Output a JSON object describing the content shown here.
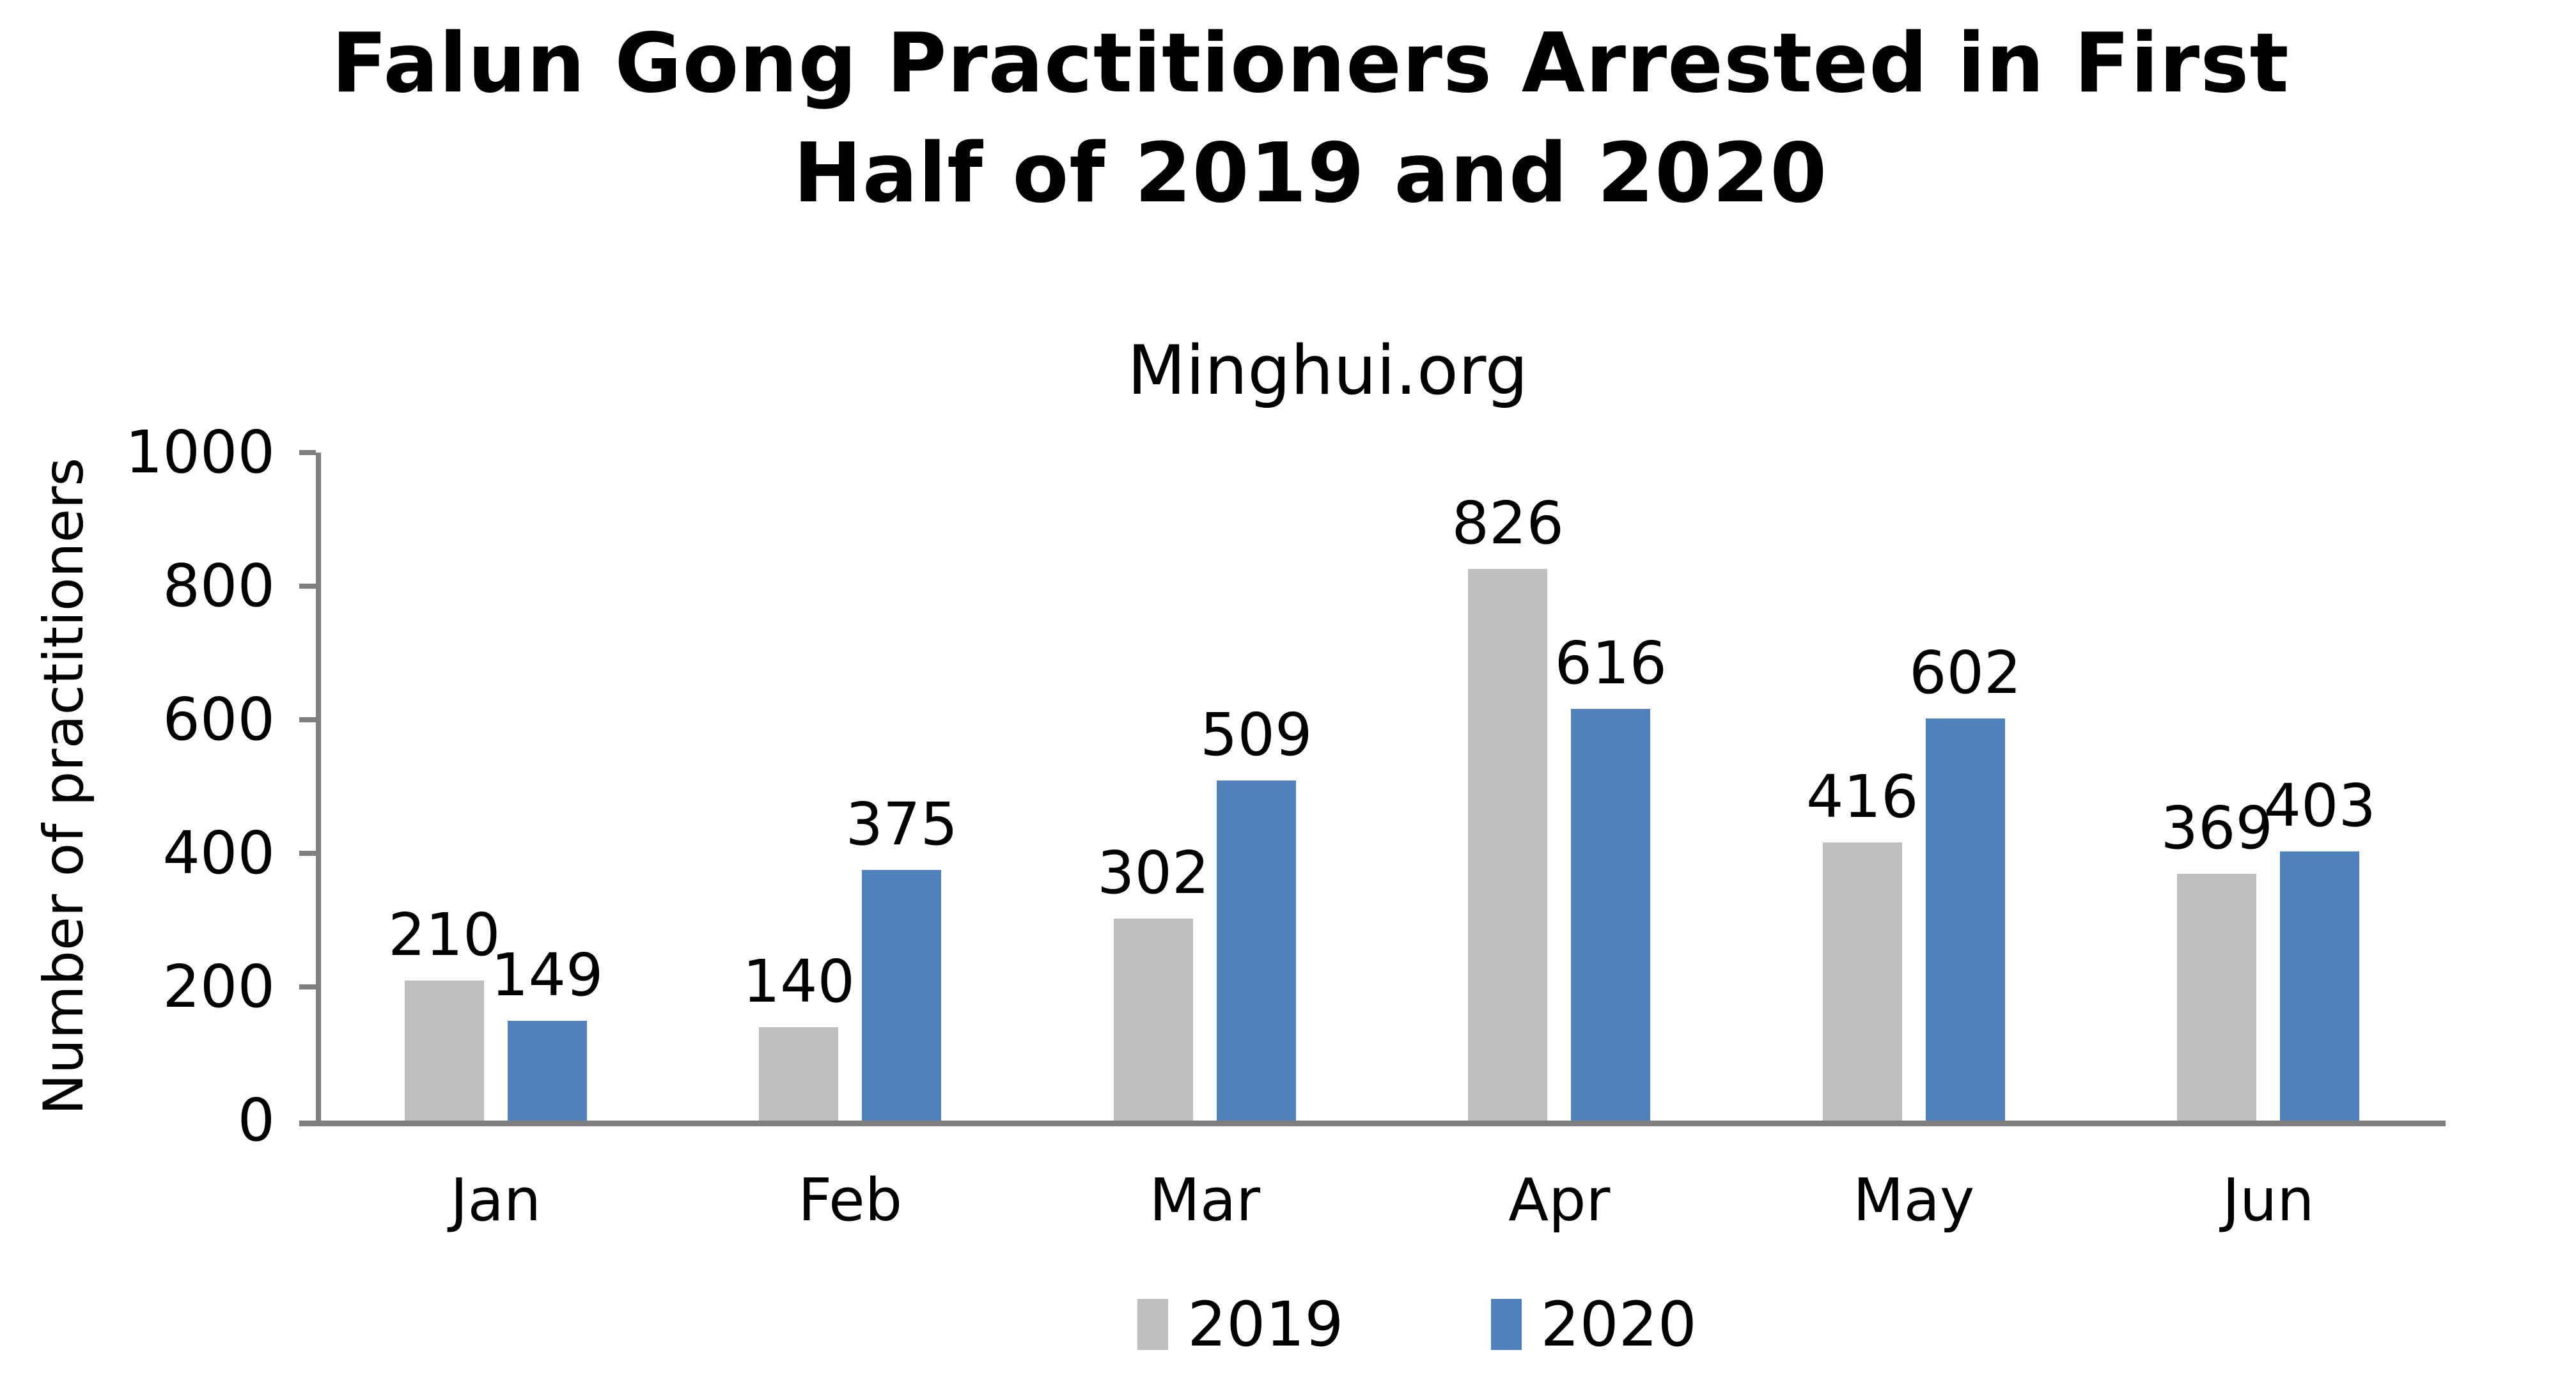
{
  "chart_data": {
    "type": "bar",
    "title": "Falun Gong Practitioners Arrested in First Half of 2019 and 2020",
    "title_lines": [
      "Falun Gong Practitioners Arrested in First",
      "Half of 2019 and 2020"
    ],
    "subtitle": "Minghui.org",
    "ylabel": "Number of practitioners",
    "xlabel": "",
    "categories": [
      "Jan",
      "Feb",
      "Mar",
      "Apr",
      "May",
      "Jun"
    ],
    "series": [
      {
        "name": "2019",
        "color": "#BFBFBF",
        "values": [
          210,
          140,
          302,
          826,
          416,
          369
        ]
      },
      {
        "name": "2020",
        "color": "#4F81BD",
        "values": [
          149,
          375,
          509,
          616,
          602,
          403
        ]
      }
    ],
    "ylim": [
      0,
      1000
    ],
    "ytick_step": 200,
    "yticks": [
      0,
      200,
      400,
      600,
      800,
      1000
    ],
    "grid": false,
    "value_labels": true,
    "legend_position": "bottom",
    "axis_color": "#7F7F7F",
    "text_color": "#000000",
    "background_color": "#FFFFFF"
  }
}
